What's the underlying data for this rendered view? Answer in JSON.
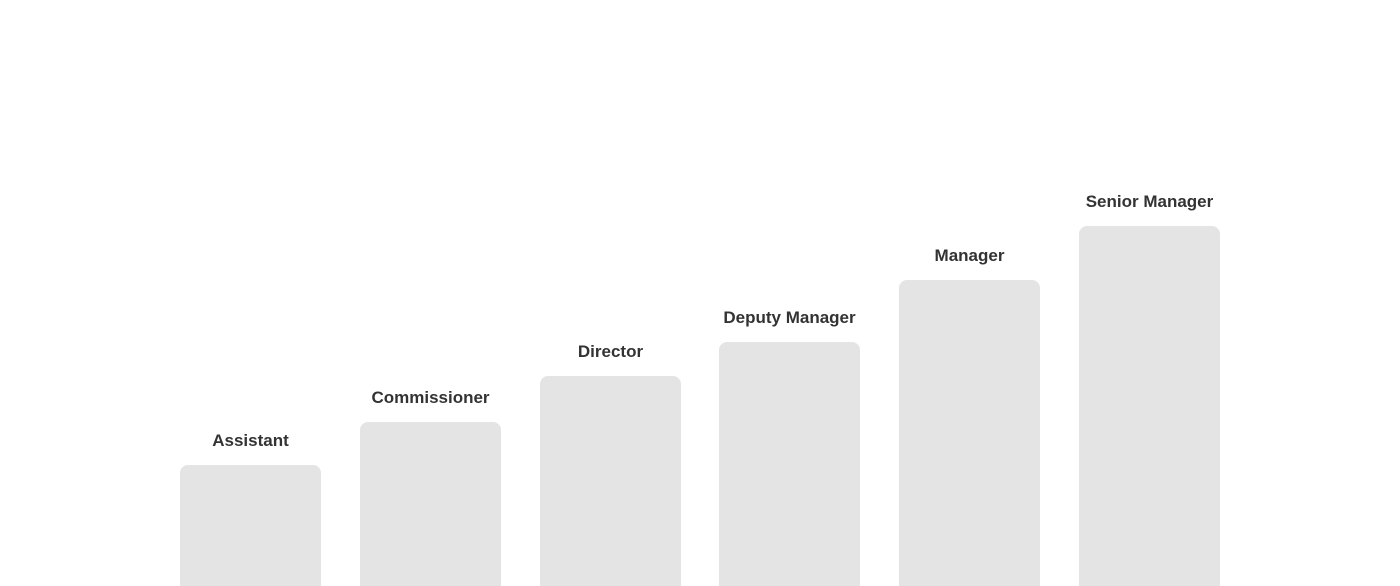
{
  "levels": [
    {
      "label": "Assistant"
    },
    {
      "label": "Commissioner"
    },
    {
      "label": "Director"
    },
    {
      "label": "Deputy Manager"
    },
    {
      "label": "Manager"
    },
    {
      "label": "Senior Manager"
    }
  ],
  "colors": {
    "bar": "#e4e4e4",
    "text": "#333333"
  }
}
